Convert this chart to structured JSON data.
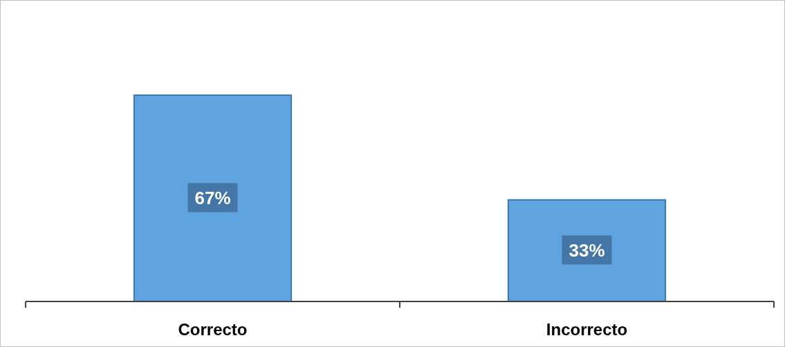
{
  "chart_data": {
    "type": "bar",
    "categories": [
      "Correcto",
      "Incorrecto"
    ],
    "values": [
      67,
      33
    ],
    "value_labels": [
      "67%",
      "33%"
    ],
    "color": "#5fa3e0",
    "relative": false
  }
}
